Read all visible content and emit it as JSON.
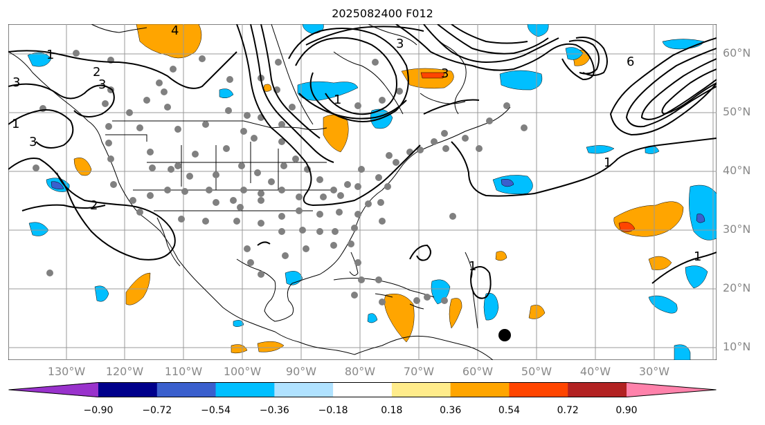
{
  "title": "2025082400 F012",
  "lat_labels": [
    "60°N",
    "50°N",
    "40°N",
    "30°N",
    "20°N",
    "10°N"
  ],
  "lon_labels": [
    "130°W",
    "120°W",
    "110°W",
    "100°W",
    "90°W",
    "80°W",
    "70°W",
    "60°W",
    "50°W",
    "40°W",
    "30°W"
  ],
  "contour_labels": [
    "1",
    "2",
    "3",
    "4",
    "6",
    "3",
    "1",
    "2",
    "3",
    "1",
    "3",
    "1",
    "1",
    "1",
    "3"
  ],
  "colorbar": {
    "ticks": [
      "−0.90",
      "−0.72",
      "−0.54",
      "−0.36",
      "−0.18",
      "0.18",
      "0.36",
      "0.54",
      "0.72",
      "0.90"
    ],
    "colors": [
      "#9932cc",
      "#00008b",
      "#3a5fcd",
      "#00bfff",
      "#b0e2ff",
      "#ffffff",
      "#ffec8b",
      "#ffa500",
      "#ff4500",
      "#b22222",
      "#ff82ab"
    ]
  }
}
